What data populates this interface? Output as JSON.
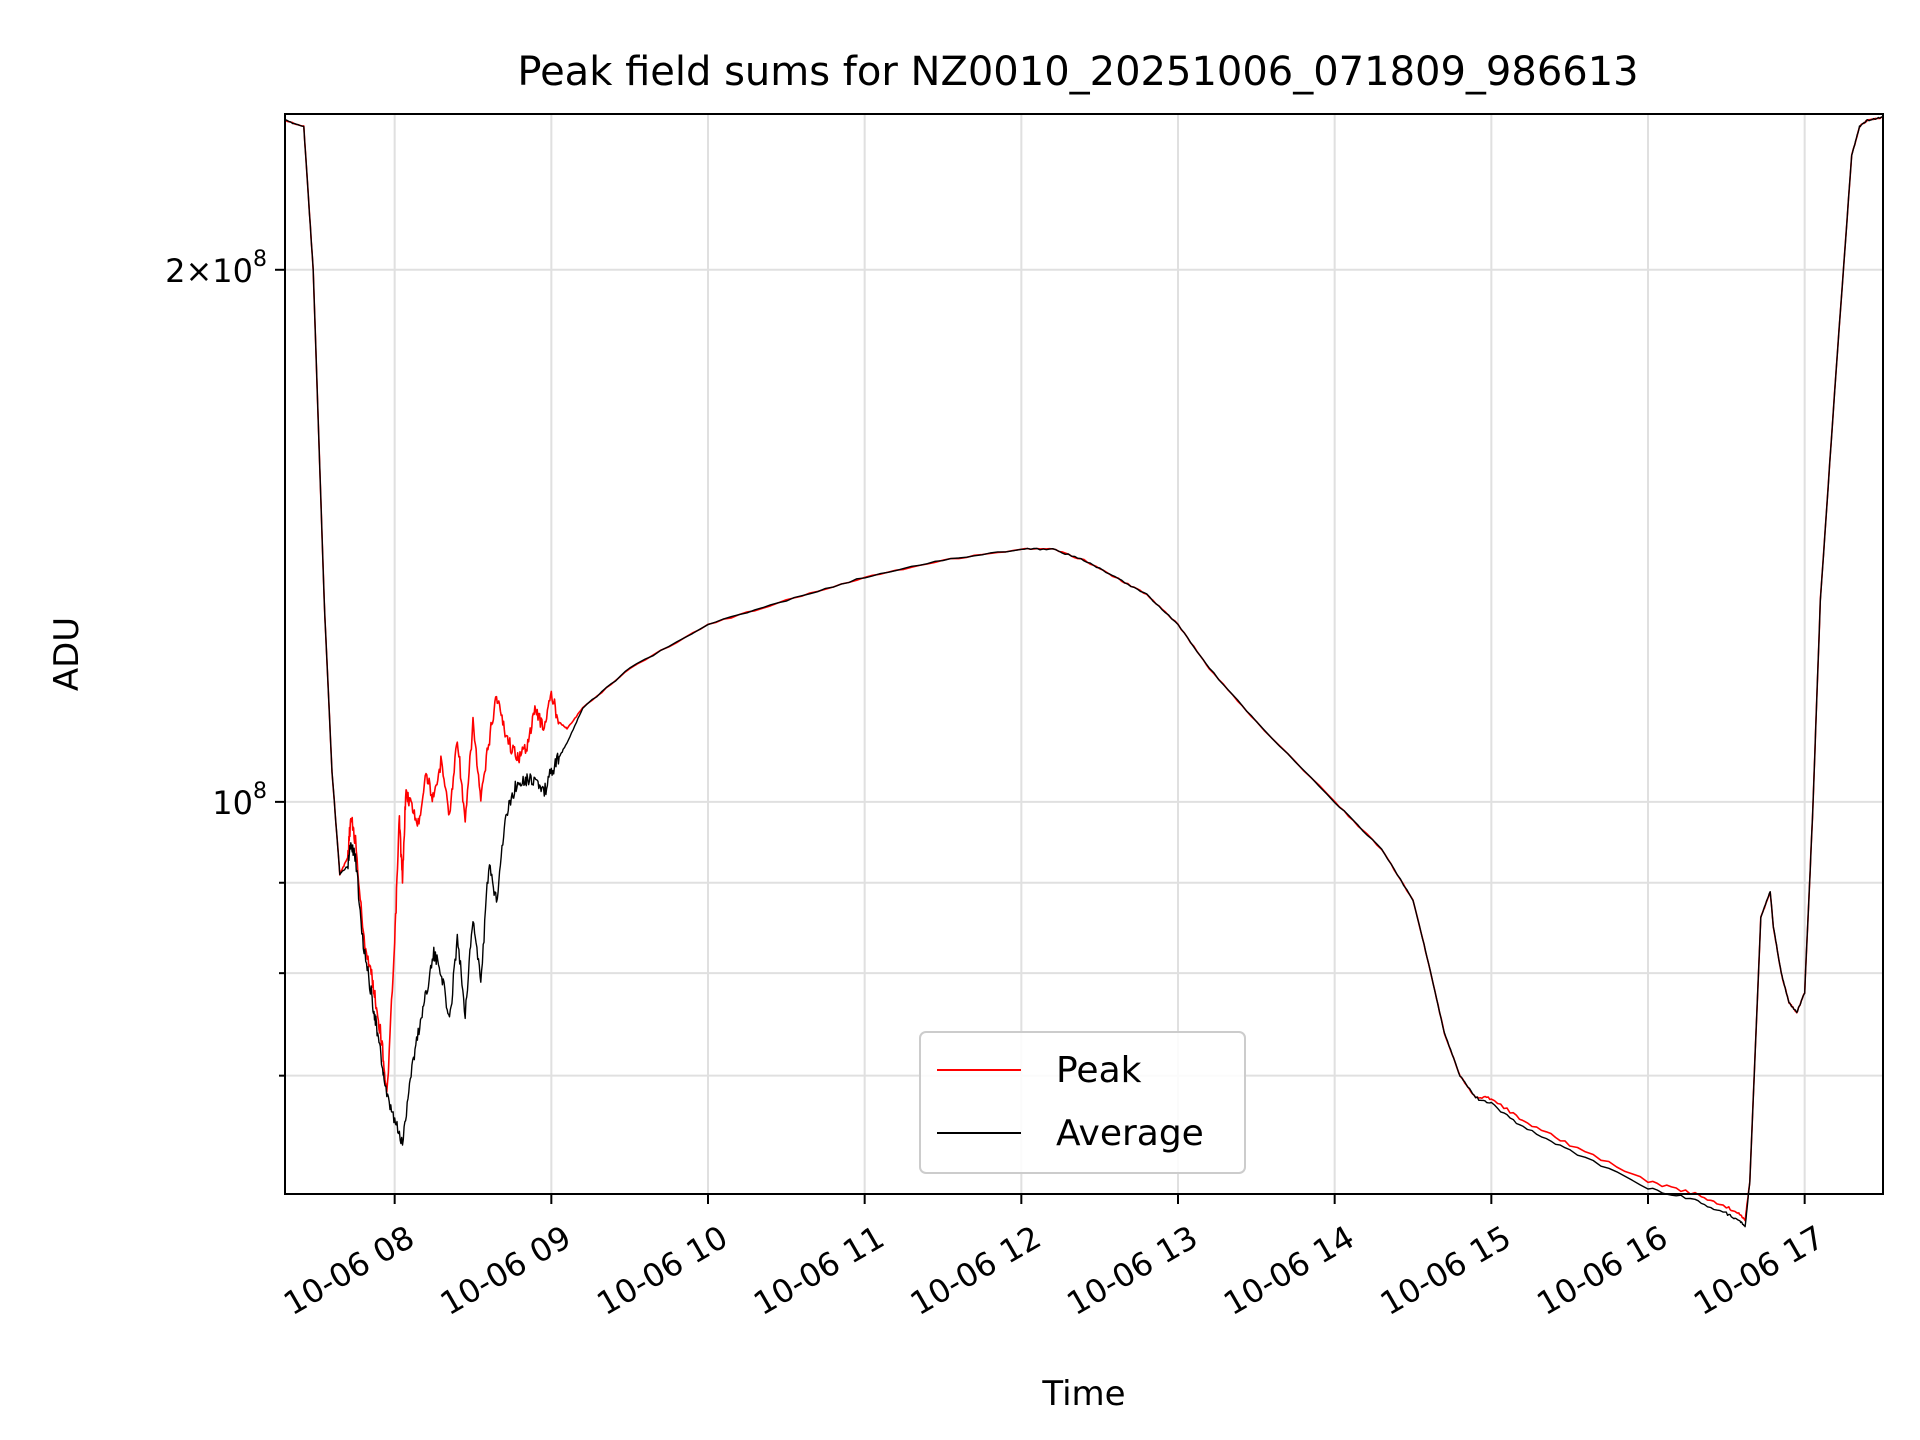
{
  "chart_data": {
    "type": "line",
    "title": "Peak field sums for NZ0010_20251006_071809_986613",
    "xlabel": "Time",
    "ylabel": "ADU",
    "y_scale": "log",
    "xlim": [
      7.3,
      17.5
    ],
    "ylim": [
      60000000,
      245000000
    ],
    "grid": true,
    "legend_position": "lower-center",
    "x_ticks": [
      {
        "value": 8,
        "label": "10-06 08"
      },
      {
        "value": 9,
        "label": "10-06 09"
      },
      {
        "value": 10,
        "label": "10-06 10"
      },
      {
        "value": 11,
        "label": "10-06 11"
      },
      {
        "value": 12,
        "label": "10-06 12"
      },
      {
        "value": 13,
        "label": "10-06 13"
      },
      {
        "value": 14,
        "label": "10-06 14"
      },
      {
        "value": 15,
        "label": "10-06 15"
      },
      {
        "value": 16,
        "label": "10-06 16"
      },
      {
        "value": 17,
        "label": "10-06 17"
      }
    ],
    "y_major_ticks": [
      {
        "value": 100000000,
        "base": "10",
        "exp": "8",
        "prefix": ""
      },
      {
        "value": 200000000,
        "base": "10",
        "exp": "8",
        "prefix": "2×"
      }
    ],
    "y_minor_ticks": [
      70000000,
      80000000,
      90000000,
      300000000
    ],
    "series": [
      {
        "name": "Peak",
        "color": "#ff0000",
        "x": [
          7.3,
          7.42,
          7.48,
          7.55,
          7.6,
          7.65,
          7.7,
          7.72,
          7.75,
          7.8,
          7.85,
          7.88,
          7.92,
          7.95,
          8.0,
          8.03,
          8.05,
          8.07,
          8.1,
          8.15,
          8.2,
          8.25,
          8.3,
          8.35,
          8.4,
          8.45,
          8.5,
          8.55,
          8.6,
          8.65,
          8.7,
          8.75,
          8.8,
          8.85,
          8.9,
          8.95,
          9.0,
          9.05,
          9.1,
          9.2,
          9.5,
          10.0,
          10.5,
          11.0,
          11.5,
          12.0,
          12.2,
          12.4,
          12.6,
          12.8,
          13.0,
          13.2,
          13.5,
          14.0,
          14.3,
          14.5,
          14.6,
          14.7,
          14.8,
          14.9,
          15.0,
          15.2,
          15.5,
          16.0,
          16.3,
          16.5,
          16.58,
          16.62,
          16.65,
          16.72,
          16.78,
          16.8,
          16.85,
          16.9,
          16.95,
          17.0,
          17.05,
          17.1,
          17.2,
          17.3,
          17.35,
          17.4,
          17.5
        ],
        "y": [
          243000000,
          241000000,
          200000000,
          130000000,
          104000000,
          91000000,
          93000000,
          98000000,
          95000000,
          84000000,
          80000000,
          77000000,
          73000000,
          68000000,
          83000000,
          98000000,
          90000000,
          101000000,
          100000000,
          97000000,
          104000000,
          100000000,
          106000000,
          98000000,
          109000000,
          97000000,
          111000000,
          100000000,
          108000000,
          115000000,
          110000000,
          107000000,
          106000000,
          108000000,
          113000000,
          110000000,
          115000000,
          111000000,
          110000000,
          113000000,
          119000000,
          126000000,
          130000000,
          134000000,
          137000000,
          139000000,
          139000000,
          137000000,
          134000000,
          131000000,
          126000000,
          119000000,
          111000000,
          100000000,
          94000000,
          88000000,
          81000000,
          74000000,
          70000000,
          68000000,
          68000000,
          66000000,
          64000000,
          61000000,
          60000000,
          59000000,
          58500000,
          58000000,
          61000000,
          86000000,
          89000000,
          85000000,
          80000000,
          77000000,
          76000000,
          78000000,
          98000000,
          130000000,
          175000000,
          232000000,
          241000000,
          243000000,
          244000000
        ]
      },
      {
        "name": "Average",
        "color": "#000000",
        "x": [
          7.3,
          7.42,
          7.48,
          7.55,
          7.6,
          7.65,
          7.7,
          7.72,
          7.75,
          7.8,
          7.85,
          7.88,
          7.92,
          7.95,
          8.0,
          8.05,
          8.1,
          8.15,
          8.2,
          8.25,
          8.3,
          8.35,
          8.4,
          8.45,
          8.5,
          8.55,
          8.6,
          8.65,
          8.7,
          8.75,
          8.8,
          8.85,
          8.9,
          8.95,
          9.0,
          9.05,
          9.1,
          9.2,
          9.5,
          10.0,
          10.5,
          11.0,
          11.5,
          12.0,
          12.2,
          12.4,
          12.6,
          12.8,
          13.0,
          13.2,
          13.5,
          14.0,
          14.3,
          14.5,
          14.6,
          14.7,
          14.8,
          14.9,
          15.0,
          15.2,
          15.5,
          16.0,
          16.3,
          16.5,
          16.58,
          16.62,
          16.65,
          16.72,
          16.78,
          16.8,
          16.85,
          16.9,
          16.95,
          17.0,
          17.05,
          17.1,
          17.2,
          17.3,
          17.35,
          17.4,
          17.5
        ],
        "y": [
          243000000,
          241000000,
          200000000,
          130000000,
          104000000,
          91000000,
          92000000,
          95000000,
          93000000,
          83000000,
          78000000,
          75000000,
          71000000,
          68000000,
          66000000,
          64000000,
          70000000,
          74000000,
          78000000,
          82000000,
          80000000,
          75000000,
          84000000,
          76000000,
          86000000,
          79000000,
          92000000,
          88000000,
          97000000,
          101000000,
          103000000,
          103000000,
          103000000,
          101000000,
          104000000,
          106000000,
          108000000,
          113000000,
          119000000,
          126000000,
          130000000,
          134000000,
          137000000,
          139000000,
          139000000,
          137000000,
          134000000,
          131000000,
          126000000,
          119000000,
          111000000,
          100000000,
          94000000,
          88000000,
          81000000,
          74000000,
          70000000,
          68000000,
          67500000,
          65500000,
          63500000,
          60500000,
          59500000,
          58500000,
          58000000,
          57500000,
          61000000,
          86000000,
          89000000,
          85000000,
          80000000,
          77000000,
          76000000,
          78000000,
          98000000,
          130000000,
          175000000,
          232000000,
          241000000,
          243000000,
          244000000
        ]
      }
    ]
  }
}
